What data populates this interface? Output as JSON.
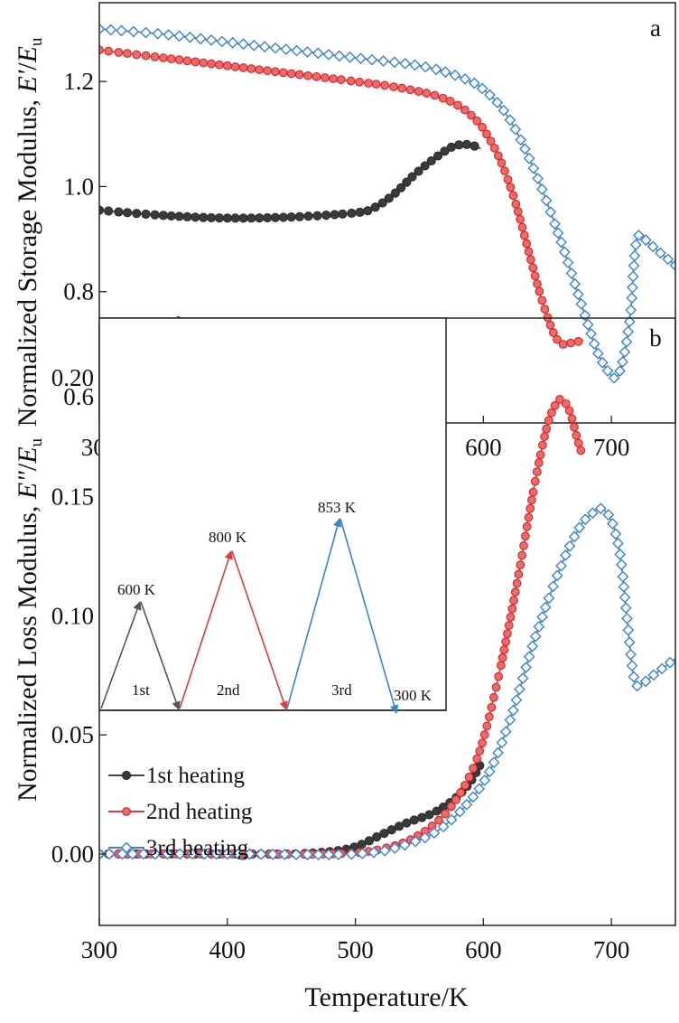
{
  "figure": {
    "xlabel": "Temperature/K"
  },
  "chart_data": [
    {
      "type": "line",
      "panel_label": "a",
      "ylabel_main": "Normalized Storage Modulus, ",
      "ylabel_sym": "E'",
      "ylabel_sub": "u",
      "xlim": [
        300,
        750
      ],
      "ylim": [
        0.55,
        1.35
      ],
      "x_ticks": [
        300,
        400,
        500,
        600,
        700
      ],
      "x_tick_labels": [
        "300",
        "400",
        "500",
        "600",
        "700"
      ],
      "y_ticks": [
        0.6,
        0.8,
        1.0,
        1.2
      ],
      "y_tick_labels": [
        "0.6",
        "0.8",
        "1.0",
        "1.2"
      ],
      "grid": false,
      "legend_position": "bottom-left",
      "series": [
        {
          "name": "1st heating",
          "color": "#444444",
          "marker": "filled-circle",
          "x": [
            300,
            350,
            400,
            450,
            500,
            515,
            530,
            545,
            560,
            575,
            585,
            592,
            598
          ],
          "y": [
            0.955,
            0.945,
            0.94,
            0.942,
            0.95,
            0.96,
            0.985,
            1.02,
            1.05,
            1.075,
            1.08,
            1.078,
            1.072
          ]
        },
        {
          "name": "2nd heating",
          "color": "#e03a3a",
          "marker": "half-filled-circle",
          "x": [
            300,
            350,
            400,
            450,
            500,
            530,
            560,
            580,
            595,
            605,
            615,
            625,
            635,
            645,
            655,
            662,
            668,
            674,
            678
          ],
          "y": [
            1.26,
            1.245,
            1.23,
            1.215,
            1.2,
            1.19,
            1.175,
            1.155,
            1.125,
            1.09,
            1.04,
            0.97,
            0.88,
            0.79,
            0.72,
            0.7,
            0.702,
            0.705,
            0.708
          ]
        },
        {
          "name": "3rd heating",
          "color": "#3a82d6",
          "marker": "open-diamond",
          "x": [
            300,
            350,
            400,
            450,
            500,
            550,
            580,
            600,
            620,
            640,
            660,
            680,
            690,
            700,
            705,
            710,
            715,
            720,
            730,
            740,
            750
          ],
          "y": [
            1.3,
            1.29,
            1.275,
            1.26,
            1.245,
            1.23,
            1.21,
            1.185,
            1.13,
            1.03,
            0.9,
            0.75,
            0.68,
            0.64,
            0.64,
            0.68,
            0.76,
            0.9,
            0.89,
            0.87,
            0.85
          ]
        }
      ]
    },
    {
      "type": "line",
      "panel_label": "b",
      "ylabel_main": "Normalized Loss Modulus, ",
      "ylabel_sym": "E\"",
      "ylabel_sub": "u",
      "xlim": [
        300,
        750
      ],
      "ylim": [
        -0.03,
        0.225
      ],
      "x_ticks": [
        300,
        400,
        500,
        600,
        700
      ],
      "x_tick_labels": [
        "300",
        "400",
        "500",
        "600",
        "700"
      ],
      "y_ticks": [
        0.0,
        0.05,
        0.1,
        0.15,
        0.2
      ],
      "y_tick_labels": [
        "0.00",
        "0.05",
        "0.10",
        "0.15",
        "0.20"
      ],
      "grid": false,
      "legend_position": "bottom-left",
      "series": [
        {
          "name": "1st heating",
          "color": "#444444",
          "marker": "filled-circle",
          "x": [
            300,
            350,
            400,
            450,
            480,
            500,
            520,
            540,
            560,
            575,
            585,
            592,
            598
          ],
          "y": [
            0.0,
            0.0,
            0.0,
            0.0,
            0.001,
            0.003,
            0.008,
            0.013,
            0.017,
            0.022,
            0.027,
            0.032,
            0.038
          ]
        },
        {
          "name": "2nd heating",
          "color": "#e03a3a",
          "marker": "half-filled-circle",
          "x": [
            300,
            400,
            480,
            520,
            550,
            575,
            595,
            610,
            625,
            640,
            650,
            658,
            663,
            668,
            673,
            677
          ],
          "y": [
            0.0,
            0.0,
            0.0,
            0.002,
            0.008,
            0.02,
            0.04,
            0.07,
            0.11,
            0.155,
            0.18,
            0.19,
            0.19,
            0.185,
            0.175,
            0.168
          ]
        },
        {
          "name": "3rd heating",
          "color": "#3a82d6",
          "marker": "open-diamond",
          "x": [
            300,
            400,
            500,
            540,
            570,
            600,
            620,
            640,
            660,
            675,
            685,
            692,
            700,
            707,
            712,
            718,
            725,
            735,
            750
          ],
          "y": [
            0.0,
            0.0,
            0.0,
            0.004,
            0.012,
            0.03,
            0.055,
            0.09,
            0.12,
            0.137,
            0.143,
            0.145,
            0.14,
            0.125,
            0.1,
            0.073,
            0.072,
            0.076,
            0.082
          ]
        }
      ],
      "inset": {
        "peaks": [
          {
            "phase": "1st",
            "temp_label": "600 K",
            "color": "#555555"
          },
          {
            "phase": "2nd",
            "temp_label": "800 K",
            "color": "#e03a3a"
          },
          {
            "phase": "3rd",
            "temp_label": "853 K",
            "color": "#3a82d6"
          }
        ],
        "end_label": "300 K"
      }
    }
  ]
}
